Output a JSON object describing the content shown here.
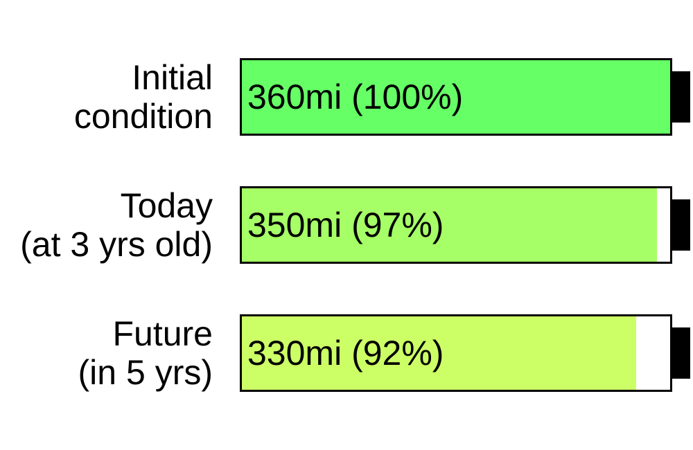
{
  "chart_data": {
    "type": "bar",
    "categories": [
      [
        "Initial",
        "condition"
      ],
      [
        "Today",
        "(at 3 yrs old)"
      ],
      [
        "Future",
        "(in 5 yrs)"
      ]
    ],
    "values": [
      100,
      97,
      92
    ],
    "ranges_mi": [
      360,
      350,
      330
    ],
    "value_labels": [
      "360mi (100%)",
      "350mi (97%)",
      "330mi (92%)"
    ],
    "colors": [
      "#66ff66",
      "#a6ff66",
      "#ccff66"
    ],
    "unit": "%",
    "ylim": [
      0,
      100
    ],
    "title": "",
    "xlabel": "",
    "ylabel": ""
  }
}
